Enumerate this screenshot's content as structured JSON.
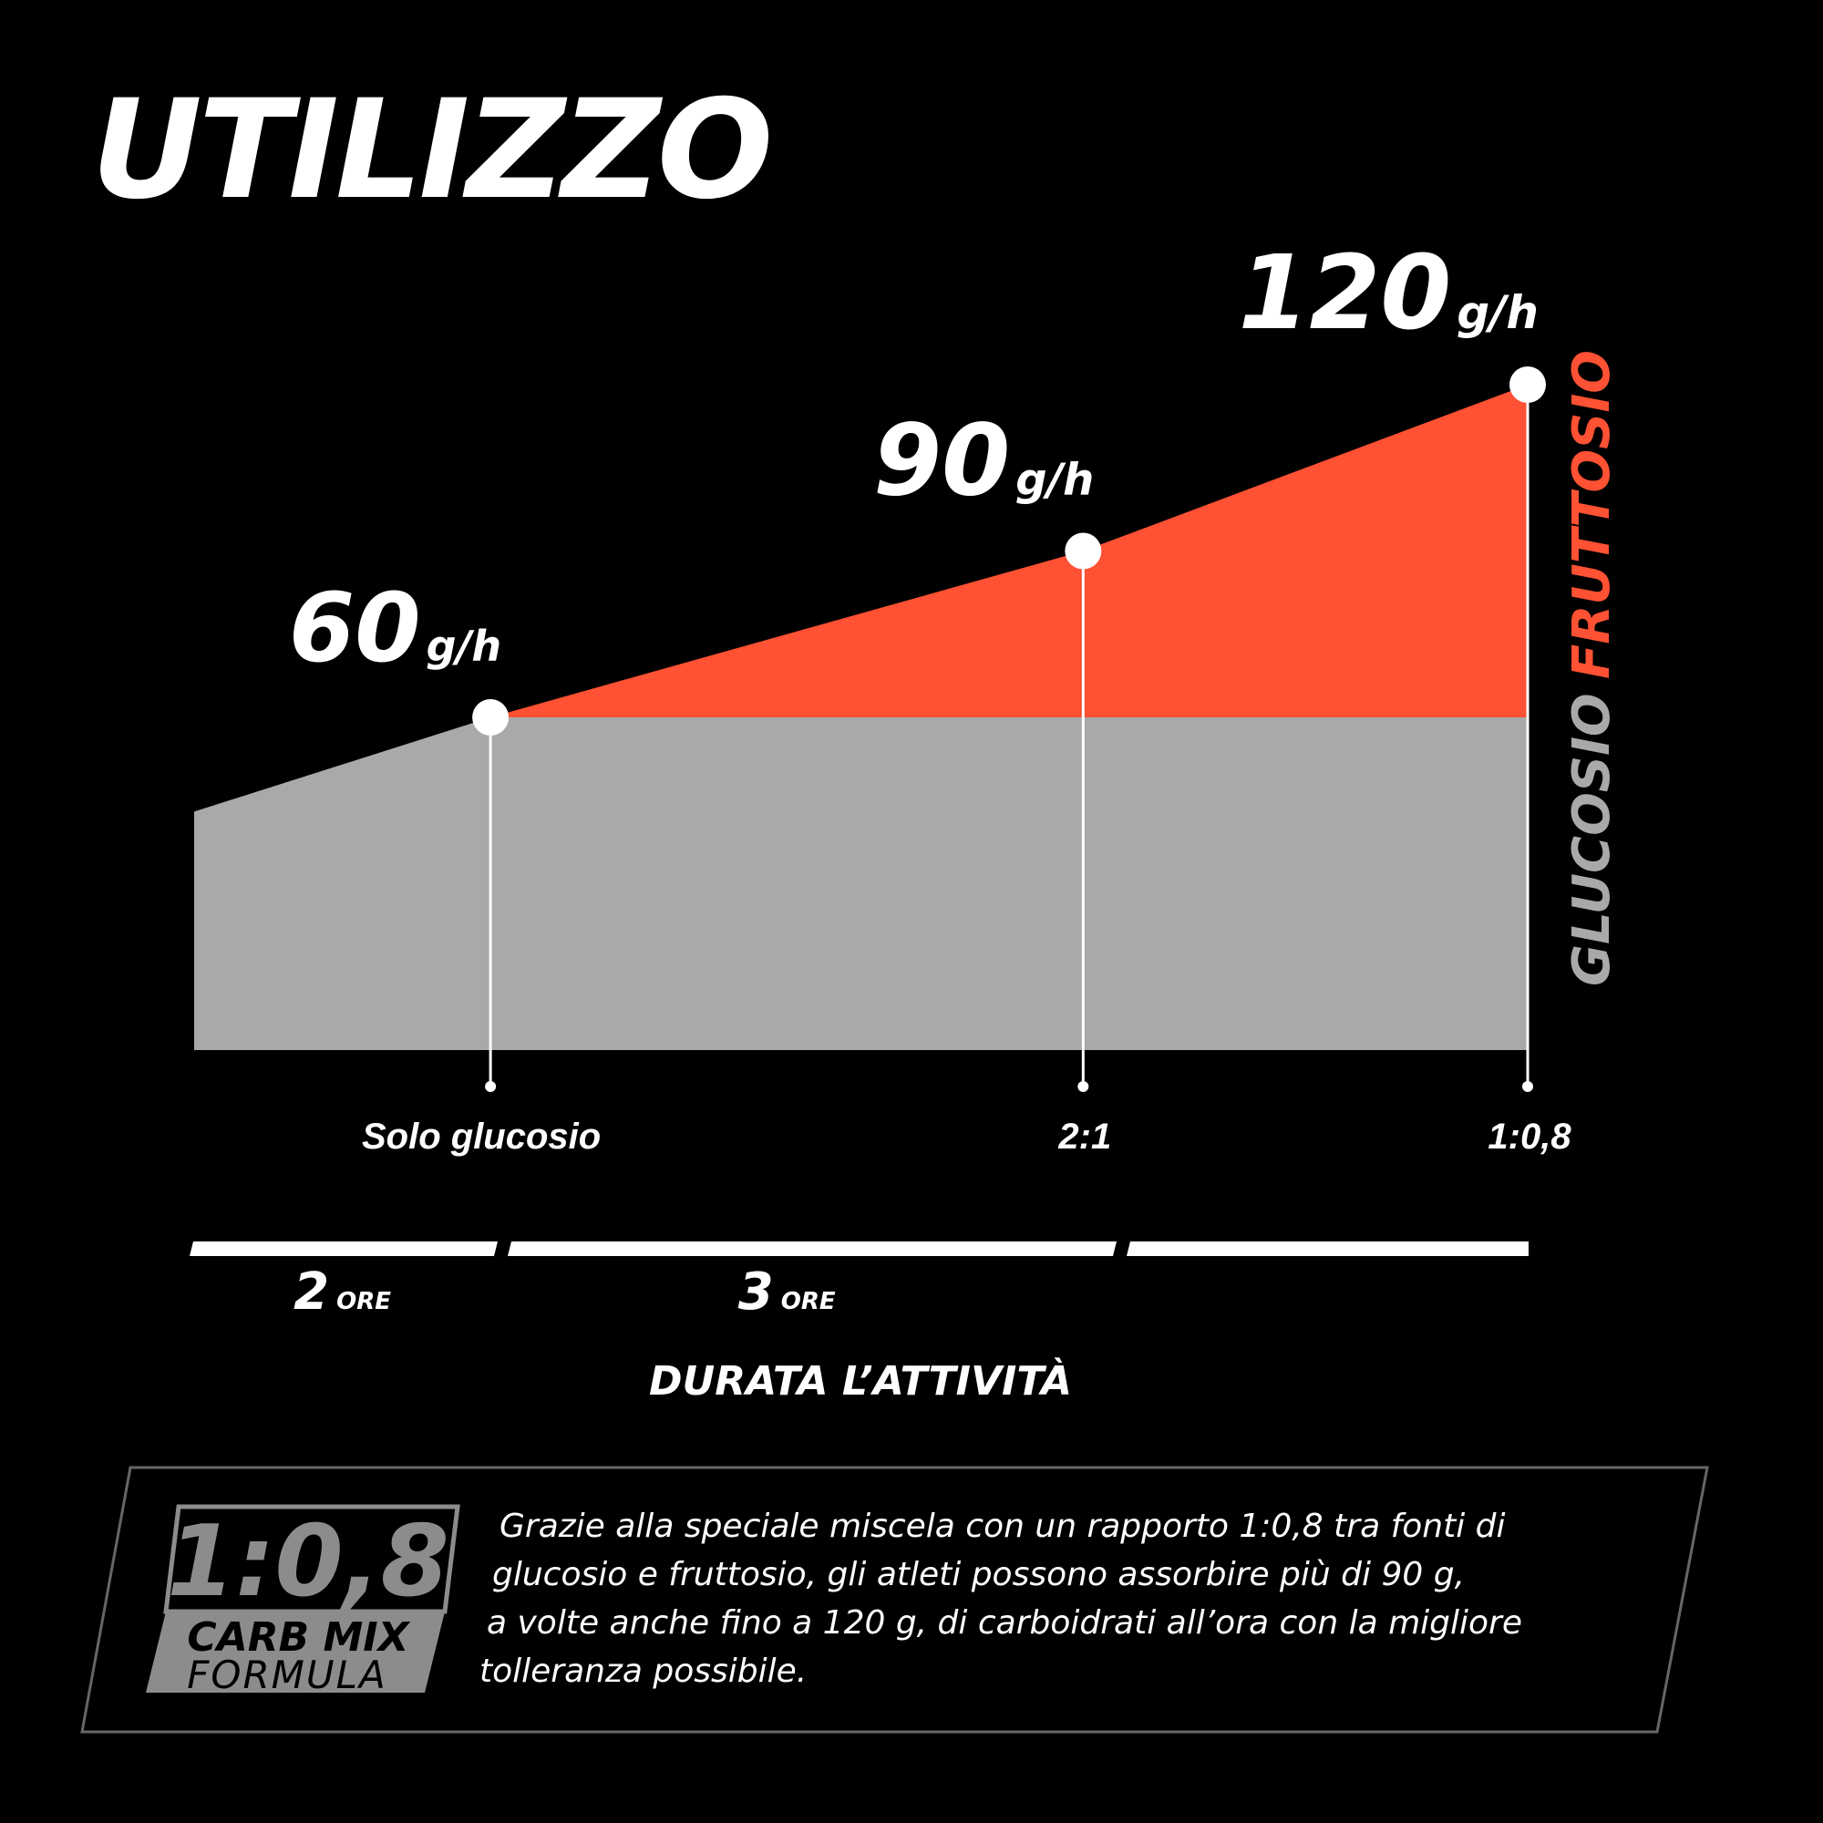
{
  "title": "UTILIZZO",
  "colors": {
    "background": "#000000",
    "glucose": "#a9a9a9",
    "fructose": "#ff5133",
    "accent": "#ffffff"
  },
  "chart_data": {
    "type": "area",
    "x": [
      0,
      2,
      6,
      9
    ],
    "x_label": "DURATA L’ATTIVITÀ",
    "duration_labels": [
      {
        "value": "2",
        "unit": "ORE",
        "from": 0,
        "to": 2
      },
      {
        "value": "3",
        "unit": "ORE",
        "from": 2,
        "to": 6
      }
    ],
    "series": [
      {
        "name": "GLUCOSIO",
        "color": "#a9a9a9",
        "values": [
          43,
          60,
          60,
          60
        ]
      },
      {
        "name": "FRUTTOSIO",
        "color": "#ff5133",
        "values": [
          0,
          0,
          30,
          60
        ]
      }
    ],
    "points": [
      {
        "x": 2,
        "total": 60,
        "value": "60",
        "unit": "g/h",
        "ratio": "Solo glucosio"
      },
      {
        "x": 6,
        "total": 90,
        "value": "90",
        "unit": "g/h",
        "ratio": "2:1"
      },
      {
        "x": 9,
        "total": 120,
        "value": "120",
        "unit": "g/h",
        "ratio": "1:0,8"
      }
    ],
    "ylim": [
      0,
      130
    ],
    "grid": false,
    "legend": "right-vertical"
  },
  "badge": {
    "ratio": "1:0,8",
    "line1": "CARB MIX",
    "line2": "FORMULA"
  },
  "description": [
    "Grazie alla speciale miscela con un rapporto 1:0,8 tra fonti di",
    "glucosio e fruttosio, gli atleti possono assorbire più di 90 g,",
    "a volte anche fino a 120 g, di carboidrati all’ora con la migliore",
    "tolleranza possibile."
  ]
}
